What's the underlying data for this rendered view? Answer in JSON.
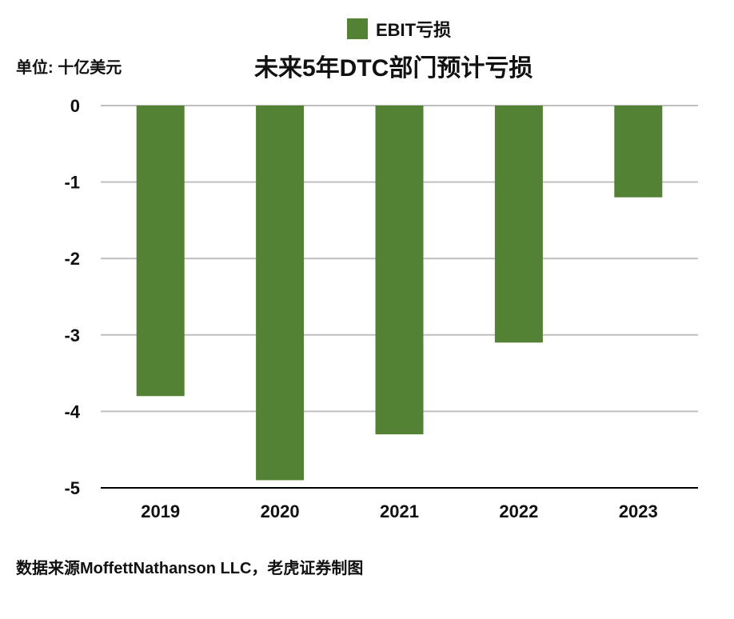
{
  "legend": {
    "label": "EBIT亏损"
  },
  "unit_label": "单位: 十亿美元",
  "title": "未来5年DTC部门预计亏损",
  "source": "数据来源MoffettNathanson LLC，老虎证券制图",
  "colors": {
    "bar": "#548235",
    "grid": "#bfbfbf",
    "axis": "#000000"
  },
  "chart_data": {
    "type": "bar",
    "title": "未来5年DTC部门预计亏损",
    "xlabel": "",
    "ylabel": "",
    "categories": [
      "2019",
      "2020",
      "2021",
      "2022",
      "2023"
    ],
    "series": [
      {
        "name": "EBIT亏损",
        "values": [
          -3.8,
          -4.9,
          -4.3,
          -3.1,
          -1.2
        ]
      }
    ],
    "ylim": [
      -5,
      0
    ],
    "yticks": [
      "0",
      "-1",
      "-2",
      "-3",
      "-4",
      "-5"
    ],
    "grid": true,
    "legend_position": "top-center"
  }
}
